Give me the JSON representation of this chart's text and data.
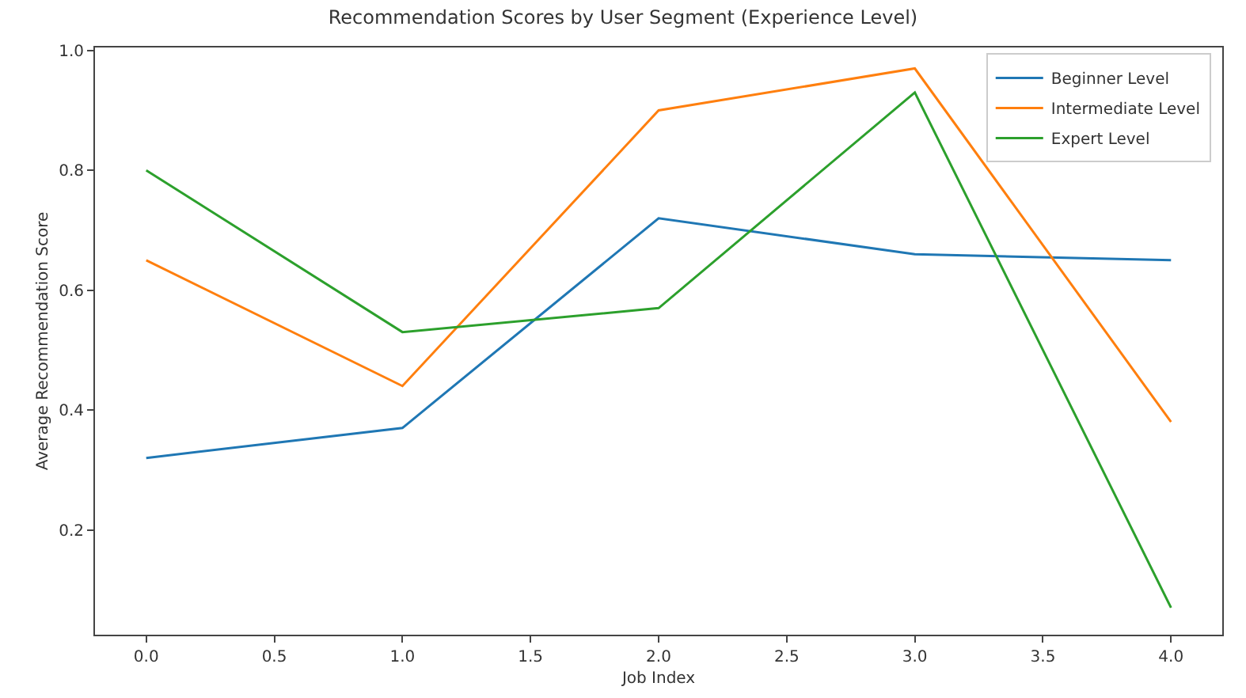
{
  "chart_data": {
    "type": "line",
    "title": "Recommendation Scores by User Segment (Experience Level)",
    "xlabel": "Job Index",
    "ylabel": "Average Recommendation Score",
    "x": [
      0,
      1,
      2,
      3,
      4
    ],
    "series": [
      {
        "name": "Beginner Level",
        "color": "#1f77b4",
        "values": [
          0.32,
          0.37,
          0.72,
          0.66,
          0.65
        ]
      },
      {
        "name": "Intermediate Level",
        "color": "#ff7f0e",
        "values": [
          0.65,
          0.44,
          0.9,
          0.97,
          0.38
        ]
      },
      {
        "name": "Expert Level",
        "color": "#2ca02c",
        "values": [
          0.8,
          0.53,
          0.57,
          0.93,
          0.07
        ]
      }
    ],
    "xlim": [
      -0.2,
      4.2
    ],
    "ylim": [
      0.025,
      1.005
    ],
    "xticks": [
      {
        "value": 0,
        "label": "0.0"
      },
      {
        "value": 0.5,
        "label": "0.5"
      },
      {
        "value": 1,
        "label": "1.0"
      },
      {
        "value": 1.5,
        "label": "1.5"
      },
      {
        "value": 2,
        "label": "2.0"
      },
      {
        "value": 2.5,
        "label": "2.5"
      },
      {
        "value": 3,
        "label": "3.0"
      },
      {
        "value": 3.5,
        "label": "3.5"
      },
      {
        "value": 4,
        "label": "4.0"
      }
    ],
    "yticks": [
      0.2,
      0.4,
      0.6,
      0.8,
      {
        "value": 1,
        "label": "1.0"
      }
    ],
    "legend": "top right",
    "grid": false,
    "line_style": "solid",
    "marker": "none"
  }
}
